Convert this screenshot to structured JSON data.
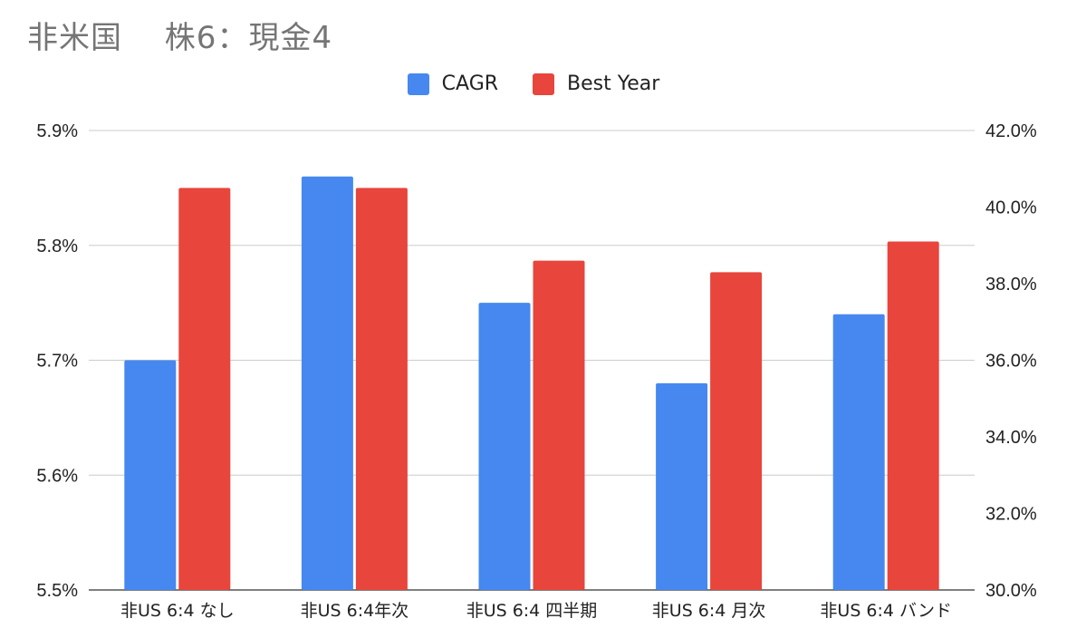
{
  "chart_data": {
    "type": "bar",
    "title": "非米国　 株6：現金4",
    "categories": [
      "非US 6:4 なし",
      "非US 6:4年次",
      "非US 6:4 四半期",
      "非US 6:4 月次",
      "非US 6:4 バンド"
    ],
    "series": [
      {
        "name": "CAGR",
        "axis": "left",
        "color": "#4688f0",
        "values": [
          5.7,
          5.86,
          5.75,
          5.68,
          5.74
        ]
      },
      {
        "name": "Best Year",
        "axis": "right",
        "color": "#e8453c",
        "values": [
          40.5,
          40.5,
          38.6,
          38.3,
          39.1
        ]
      }
    ],
    "y_left": {
      "lim": [
        5.5,
        5.9
      ],
      "ticks": [
        "5.5%",
        "5.6%",
        "5.7%",
        "5.8%",
        "5.9%"
      ]
    },
    "y_right": {
      "lim": [
        30.0,
        42.0
      ],
      "ticks": [
        "30.0%",
        "32.0%",
        "34.0%",
        "36.0%",
        "38.0%",
        "40.0%",
        "42.0%"
      ]
    },
    "grid": true,
    "legend": "top-center"
  }
}
